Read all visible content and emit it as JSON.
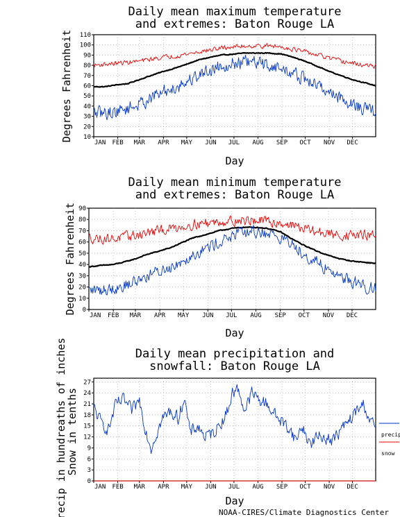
{
  "credit": "NOAA-CIRES/Climate Diagnostics Center",
  "chart_data": [
    {
      "type": "line",
      "title_lines": [
        "Daily mean maximum temperature",
        "and extremes: Baton Rouge LA"
      ],
      "xlabel": "Day",
      "ylabel": "Degrees Fahrenheit",
      "ylim": [
        10,
        110
      ],
      "yticks": [
        10,
        20,
        30,
        40,
        50,
        60,
        70,
        80,
        90,
        100,
        110
      ],
      "xlim": [
        1,
        365
      ],
      "months": [
        "JAN",
        "FEB",
        "MAR",
        "APR",
        "MAY",
        "JUN",
        "JUL",
        "AUG",
        "SEP",
        "OCT",
        "NOV",
        "DEC"
      ],
      "month_days": [
        1,
        32,
        60,
        91,
        121,
        152,
        182,
        213,
        244,
        274,
        305,
        335
      ],
      "grid": true,
      "series": [
        {
          "key": "mean",
          "color": "#000000",
          "width": 2.2,
          "noise": 0.35,
          "x": [
            1,
            15,
            32,
            45,
            60,
            75,
            91,
            105,
            121,
            135,
            152,
            166,
            182,
            196,
            213,
            228,
            244,
            258,
            274,
            290,
            305,
            320,
            335,
            350,
            365
          ],
          "y": [
            59,
            59,
            61,
            62,
            66,
            70,
            74,
            77,
            81,
            85,
            88,
            90,
            91,
            92,
            92,
            92,
            91,
            88,
            84,
            79,
            74,
            70,
            66,
            63,
            60
          ]
        },
        {
          "key": "record_high",
          "color": "#ee0000",
          "width": 0.9,
          "noise": 2.0,
          "x": [
            1,
            15,
            32,
            45,
            60,
            75,
            91,
            105,
            121,
            135,
            152,
            166,
            182,
            196,
            213,
            228,
            244,
            258,
            274,
            290,
            305,
            320,
            335,
            350,
            365
          ],
          "y": [
            80,
            81,
            82,
            83,
            84,
            86,
            88,
            89,
            91,
            93,
            95,
            97,
            98,
            99,
            99,
            99,
            98,
            96,
            93,
            90,
            87,
            84,
            82,
            80,
            79
          ]
        },
        {
          "key": "record_low",
          "color": "#0033cc",
          "width": 0.9,
          "noise": 6.0,
          "x": [
            1,
            15,
            32,
            45,
            60,
            75,
            91,
            105,
            121,
            135,
            152,
            166,
            182,
            196,
            213,
            228,
            244,
            258,
            274,
            290,
            305,
            320,
            335,
            350,
            365
          ],
          "y": [
            33,
            33,
            35,
            38,
            42,
            48,
            54,
            58,
            64,
            70,
            76,
            80,
            82,
            83,
            82,
            80,
            76,
            72,
            66,
            60,
            54,
            48,
            42,
            37,
            34
          ]
        }
      ]
    },
    {
      "type": "line",
      "title_lines": [
        "Daily mean minimum temperature",
        "and extremes: Baton Rouge LA"
      ],
      "xlabel": "Day",
      "ylabel": "Degrees Fahrenheit",
      "ylim": [
        0,
        90
      ],
      "yticks": [
        0,
        10,
        20,
        30,
        40,
        50,
        60,
        70,
        80,
        90
      ],
      "xlim": [
        1,
        365
      ],
      "months": [
        "JAN",
        "FEB",
        "MAR",
        "APR",
        "MAY",
        "JUN",
        "JUL",
        "AUG",
        "SEP",
        "OCT",
        "NOV",
        "DEC"
      ],
      "month_days": [
        1,
        32,
        60,
        91,
        121,
        152,
        182,
        213,
        244,
        274,
        305,
        335
      ],
      "grid": true,
      "series": [
        {
          "key": "mean",
          "color": "#000000",
          "width": 2.2,
          "noise": 0.35,
          "x": [
            1,
            15,
            32,
            45,
            60,
            75,
            91,
            105,
            121,
            135,
            152,
            166,
            182,
            196,
            213,
            228,
            244,
            258,
            274,
            290,
            305,
            320,
            335,
            350,
            365
          ],
          "y": [
            38,
            39,
            40,
            42,
            45,
            49,
            52,
            55,
            60,
            64,
            67,
            70,
            72,
            73,
            73,
            72,
            69,
            63,
            57,
            52,
            48,
            45,
            43,
            42,
            41
          ]
        },
        {
          "key": "record_high",
          "color": "#ee0000",
          "width": 0.9,
          "noise": 4.0,
          "x": [
            1,
            15,
            32,
            45,
            60,
            75,
            91,
            105,
            121,
            135,
            152,
            166,
            182,
            196,
            213,
            228,
            244,
            258,
            274,
            290,
            305,
            320,
            335,
            350,
            365
          ],
          "y": [
            64,
            63,
            63,
            64,
            66,
            68,
            70,
            72,
            74,
            76,
            77,
            78,
            79,
            79,
            79,
            78,
            77,
            75,
            72,
            69,
            67,
            66,
            66,
            66,
            66
          ]
        },
        {
          "key": "record_low",
          "color": "#0033cc",
          "width": 0.9,
          "noise": 5.0,
          "x": [
            1,
            15,
            32,
            45,
            60,
            75,
            91,
            105,
            121,
            135,
            152,
            166,
            182,
            196,
            213,
            228,
            244,
            258,
            274,
            290,
            305,
            320,
            335,
            350,
            365
          ],
          "y": [
            17,
            17,
            19,
            21,
            25,
            30,
            34,
            38,
            44,
            50,
            55,
            60,
            65,
            68,
            69,
            68,
            64,
            58,
            50,
            42,
            35,
            30,
            25,
            21,
            19
          ]
        }
      ]
    },
    {
      "type": "line",
      "title_lines": [
        "Daily mean precipitation and",
        "snowfall: Baton Rouge LA"
      ],
      "xlabel": "Day",
      "ylabel_lines": [
        "Precip in hundreaths of inches",
        "Snow in tenths"
      ],
      "ylim": [
        0,
        28
      ],
      "yticks": [
        0,
        3,
        6,
        9,
        12,
        15,
        18,
        21,
        24,
        27
      ],
      "xlim": [
        1,
        365
      ],
      "months": [
        "JAN",
        "FEB",
        "MAR",
        "APR",
        "MAY",
        "JUN",
        "JUL",
        "AUG",
        "SEP",
        "OCT",
        "NOV",
        "DEC"
      ],
      "month_days": [
        1,
        32,
        60,
        91,
        121,
        152,
        182,
        213,
        244,
        274,
        305,
        335
      ],
      "grid": true,
      "legend": {
        "placement": "right",
        "entries": [
          {
            "label": "precip",
            "color": "#0033cc"
          },
          {
            "label": "snow",
            "color": "#ee0000"
          }
        ]
      },
      "series": [
        {
          "key": "precip",
          "color": "#0033cc",
          "width": 0.9,
          "noise": 1.6,
          "x": [
            1,
            10,
            20,
            30,
            40,
            50,
            60,
            68,
            75,
            82,
            90,
            100,
            110,
            118,
            125,
            135,
            145,
            155,
            165,
            172,
            180,
            188,
            196,
            205,
            215,
            225,
            235,
            245,
            255,
            262,
            270,
            280,
            290,
            300,
            310,
            320,
            330,
            340,
            350,
            358,
            365
          ],
          "y": [
            20,
            16,
            14,
            21,
            22,
            19,
            22,
            14,
            9,
            13,
            17,
            19,
            17,
            23,
            13,
            15,
            12,
            13,
            16,
            18,
            24,
            25,
            19,
            24,
            22,
            21,
            18,
            16,
            14,
            11,
            15,
            10,
            12,
            12,
            11,
            14,
            16,
            19,
            21,
            16,
            15
          ]
        },
        {
          "key": "snow",
          "color": "#ee0000",
          "width": 1.0,
          "noise": 0,
          "x": [
            1,
            365
          ],
          "y": [
            0,
            0
          ]
        }
      ]
    }
  ]
}
